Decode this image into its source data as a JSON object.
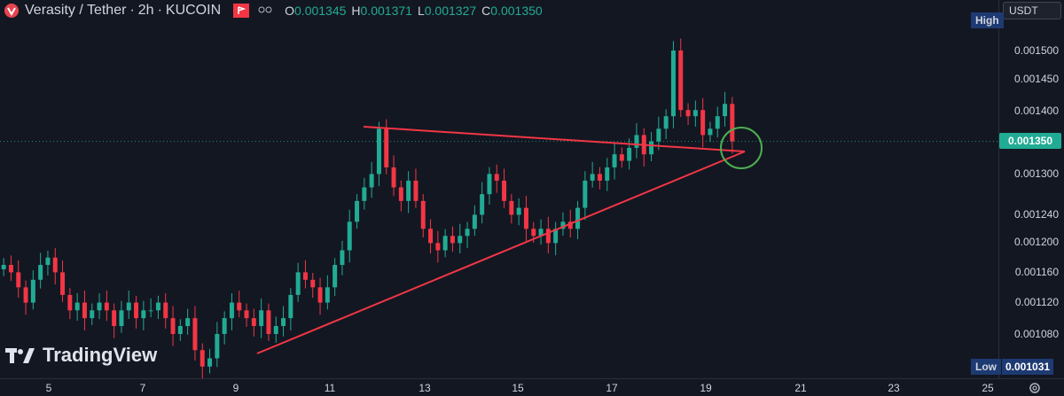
{
  "header": {
    "symbol": "Verasity / Tether",
    "interval": "2h",
    "exchange": "KUCOIN",
    "interval_sep": "·",
    "exchange_sep": "·",
    "ohlc": [
      {
        "label": "O",
        "value": "0.001345"
      },
      {
        "label": "H",
        "value": "0.001371"
      },
      {
        "label": "L",
        "value": "0.001327"
      },
      {
        "label": "C",
        "value": "0.001350"
      }
    ]
  },
  "price_axis": {
    "currency": "USDT",
    "high_tag": "High",
    "low_tag": "Low",
    "low_value": "0.001031",
    "last_price": "0.001350",
    "labels": [
      "0.001500",
      "0.001450",
      "0.001400",
      "0.001300",
      "0.001240",
      "0.001200",
      "0.001160",
      "0.001120",
      "0.001080"
    ]
  },
  "time_axis": {
    "labels": [
      "5",
      "7",
      "9",
      "11",
      "13",
      "15",
      "17",
      "19",
      "21",
      "23",
      "25"
    ]
  },
  "watermark": "TradingView",
  "colors": {
    "background": "#131722",
    "up": "#22ab94",
    "down": "#f23645",
    "trendline": "#f23645",
    "circle": "#4caf50",
    "last_price": "#22ab94"
  },
  "icons": {
    "settings": "gear-icon",
    "flag": "flag-icon",
    "eye": "eye-icon"
  },
  "chart_data": {
    "type": "candlestick",
    "symbol": "Verasity / Tether",
    "interval": "2h",
    "x_ticks": [
      "5",
      "7",
      "9",
      "11",
      "13",
      "15",
      "17",
      "19",
      "21",
      "23",
      "25"
    ],
    "y_range": [
      0.001031,
      0.00152
    ],
    "log_scale": true,
    "last": 0.00135,
    "low": 0.001031,
    "closes": [
      0.00117,
      0.00116,
      0.00114,
      0.00112,
      0.00115,
      0.00117,
      0.00118,
      0.00116,
      0.00113,
      0.00111,
      0.00112,
      0.0011,
      0.00111,
      0.00112,
      0.00111,
      0.00109,
      0.00111,
      0.00112,
      0.0011,
      0.00111,
      0.00111,
      0.00112,
      0.0011,
      0.00108,
      0.00109,
      0.0011,
      0.00106,
      0.00104,
      0.00105,
      0.00108,
      0.0011,
      0.00112,
      0.00111,
      0.0011,
      0.00109,
      0.00111,
      0.00108,
      0.00109,
      0.0011,
      0.00113,
      0.00116,
      0.00115,
      0.00114,
      0.00112,
      0.00114,
      0.00117,
      0.00119,
      0.00123,
      0.00126,
      0.00128,
      0.0013,
      0.00137,
      0.00131,
      0.00128,
      0.00126,
      0.00129,
      0.00126,
      0.00122,
      0.0012,
      0.00119,
      0.00121,
      0.0012,
      0.00121,
      0.00122,
      0.00124,
      0.00127,
      0.0013,
      0.00129,
      0.00126,
      0.00124,
      0.00125,
      0.00122,
      0.00121,
      0.00122,
      0.0012,
      0.00122,
      0.00123,
      0.00122,
      0.00125,
      0.00129,
      0.0013,
      0.00129,
      0.00131,
      0.00133,
      0.00132,
      0.00134,
      0.00136,
      0.00133,
      0.00135,
      0.00137,
      0.00139,
      0.0015,
      0.0014,
      0.00139,
      0.0014,
      0.00136,
      0.00137,
      0.00139,
      0.00141,
      0.00135
    ]
  }
}
